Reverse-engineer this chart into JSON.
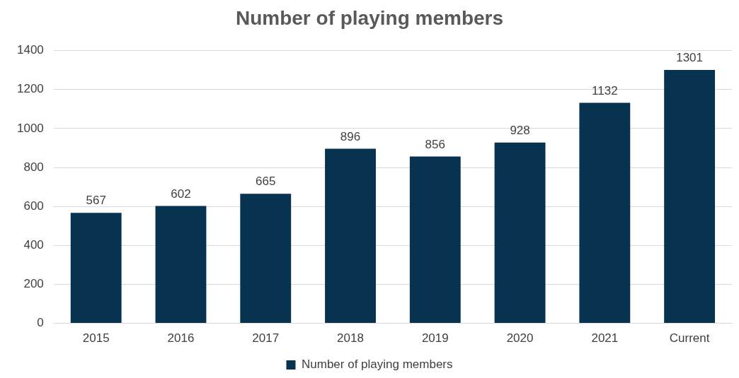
{
  "chart_data": {
    "type": "bar",
    "title": "Number of playing members",
    "categories": [
      "2015",
      "2016",
      "2017",
      "2018",
      "2019",
      "2020",
      "2021",
      "Current"
    ],
    "series": [
      {
        "name": "Number of playing members",
        "color": "#073350",
        "values": [
          567,
          602,
          665,
          896,
          856,
          928,
          1132,
          1301
        ]
      }
    ],
    "ylim": [
      0,
      1400
    ],
    "yticks": [
      0,
      200,
      400,
      600,
      800,
      1000,
      1200,
      1400
    ],
    "grid": "y",
    "legend": "bottom",
    "data_labels": true
  }
}
